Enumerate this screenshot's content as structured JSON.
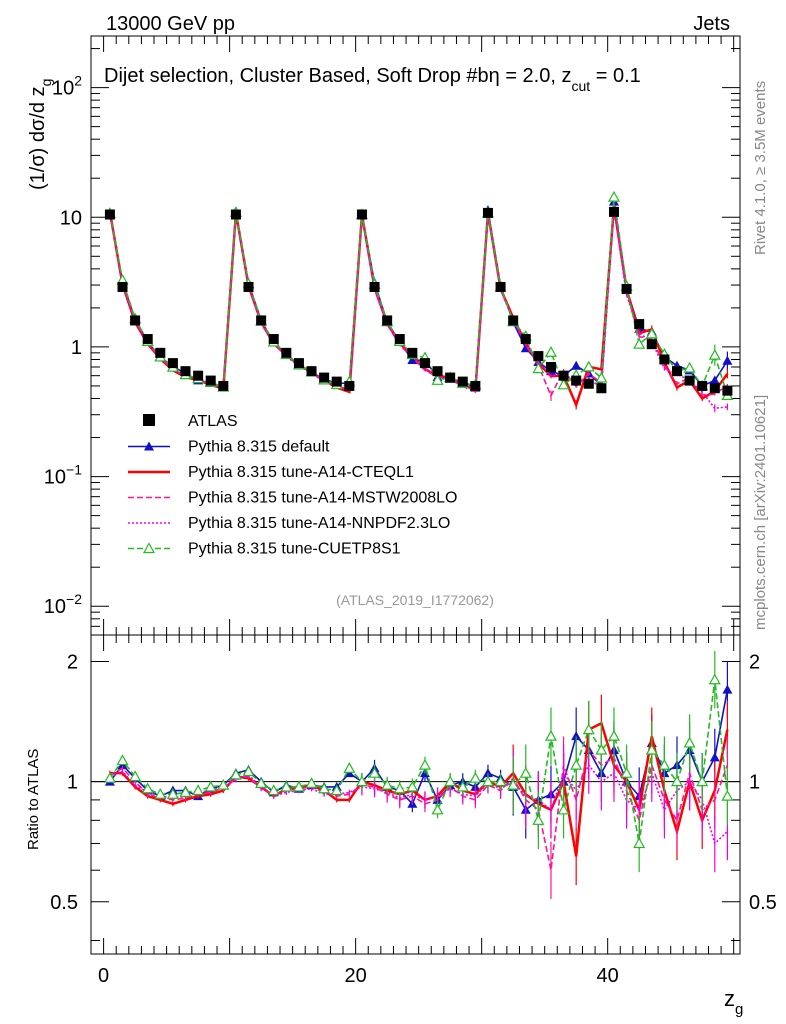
{
  "header": {
    "left": "13000 GeV pp",
    "right": "Jets"
  },
  "side_labels": {
    "top": "Rivet 4.1.0, ≥ 3.5M events",
    "bottom": "mcplots.cern.ch [arXiv:2401.10621]"
  },
  "chart_data": {
    "type": "line",
    "title": "Dijet selection, Cluster Based, Soft Drop #b",
    "title_suffix": "η = 2.0, z",
    "title_sub": "cut",
    "title_end": " = 0.1",
    "analysis_tag": "(ATLAS_2019_I1772062)",
    "xlabel": "z",
    "xlabel_sub": "g",
    "ylabel": "(1/σ) dσ/d z",
    "ylabel_sub": "g",
    "ratio_ylabel": "Ratio to ATLAS",
    "xlim": [
      -1,
      50.5
    ],
    "ylim": [
      0.006,
      250
    ],
    "ratio_ylim": [
      0.37,
      2.33
    ],
    "x_ticks": [
      "0",
      "20",
      "40"
    ],
    "x_tick_values": [
      0,
      20,
      40
    ],
    "y_ticks": [
      {
        "value": 0.01,
        "base": "10",
        "exp": "−2"
      },
      {
        "value": 0.1,
        "base": "10",
        "exp": "−1"
      },
      {
        "value": 1,
        "base": "1",
        "exp": ""
      },
      {
        "value": 10,
        "base": "10",
        "exp": ""
      },
      {
        "value": 100,
        "base": "10",
        "exp": "2"
      }
    ],
    "ratio_ticks": [
      "0.5",
      "1",
      "2"
    ],
    "ratio_tick_values": [
      0.5,
      1,
      2
    ],
    "legend_position": "middle-left",
    "x": [
      0.5,
      1.5,
      2.5,
      3.5,
      4.5,
      5.5,
      6.5,
      7.5,
      8.5,
      9.5,
      10.5,
      11.5,
      12.5,
      13.5,
      14.5,
      15.5,
      16.5,
      17.5,
      18.5,
      19.5,
      20.5,
      21.5,
      22.5,
      23.5,
      24.5,
      25.5,
      26.5,
      27.5,
      28.5,
      29.5,
      30.5,
      31.5,
      32.5,
      33.5,
      34.5,
      35.5,
      36.5,
      37.5,
      38.5,
      39.5,
      40.5,
      41.5,
      42.5,
      43.5,
      44.5,
      45.5,
      46.5,
      47.5,
      48.5,
      49.5
    ],
    "data": {
      "name": "ATLAS",
      "values": [
        10.5,
        2.9,
        1.6,
        1.15,
        0.9,
        0.75,
        0.65,
        0.6,
        0.55,
        0.5,
        10.5,
        2.9,
        1.6,
        1.15,
        0.9,
        0.75,
        0.65,
        0.58,
        0.54,
        0.5,
        10.5,
        2.9,
        1.6,
        1.15,
        0.9,
        0.75,
        0.65,
        0.58,
        0.54,
        0.5,
        10.8,
        2.9,
        1.6,
        1.15,
        0.85,
        0.7,
        0.6,
        0.55,
        0.52,
        0.48,
        11.0,
        2.8,
        1.5,
        1.05,
        0.8,
        0.65,
        0.55,
        0.5,
        0.48,
        0.46
      ]
    },
    "series": [
      {
        "name": "Pythia 8.315 default",
        "color": "#1010cc",
        "style": "solid",
        "marker": "triangle-filled",
        "ratio": [
          1.0,
          1.1,
          1.02,
          0.95,
          0.92,
          0.95,
          0.95,
          0.92,
          0.96,
          0.98,
          1.05,
          1.07,
          1.0,
          0.94,
          0.98,
          0.96,
          0.98,
          0.97,
          0.97,
          1.05,
          1.0,
          1.08,
          0.97,
          0.95,
          0.88,
          1.05,
          0.9,
          0.98,
          1.0,
          0.97,
          1.05,
          1.02,
          0.97,
          0.85,
          0.9,
          0.93,
          1.0,
          1.3,
          1.2,
          1.05,
          1.2,
          1.0,
          0.92,
          1.25,
          1.05,
          1.1,
          1.2,
          1.0,
          1.15,
          1.7
        ]
      },
      {
        "name": "Pythia 8.315 tune-A14-CTEQL1",
        "color": "#ff0000",
        "style": "solid",
        "marker": "none",
        "ratio": [
          1.05,
          1.05,
          0.97,
          0.92,
          0.9,
          0.88,
          0.9,
          0.92,
          0.93,
          0.95,
          1.03,
          1.02,
          0.97,
          0.92,
          0.96,
          0.97,
          0.98,
          0.95,
          0.9,
          0.9,
          1.0,
          0.98,
          0.95,
          0.93,
          0.95,
          0.9,
          0.92,
          1.0,
          0.95,
          0.93,
          1.0,
          0.97,
          1.05,
          0.93,
          0.88,
          0.85,
          1.0,
          0.65,
          1.35,
          1.4,
          1.1,
          1.0,
          0.85,
          1.3,
          0.95,
          0.75,
          1.0,
          0.8,
          0.95,
          1.35
        ]
      },
      {
        "name": "Pythia 8.315 tune-A14-MSTW2008LO",
        "color": "#ff1493",
        "style": "dashed",
        "marker": "none",
        "ratio": [
          1.04,
          1.08,
          1.0,
          0.93,
          0.91,
          0.9,
          0.91,
          0.93,
          0.94,
          0.96,
          1.02,
          1.03,
          0.96,
          0.93,
          0.95,
          0.96,
          0.97,
          0.94,
          0.92,
          0.93,
          0.98,
          0.97,
          0.93,
          0.9,
          0.92,
          0.88,
          0.9,
          0.97,
          0.92,
          0.9,
          0.98,
          0.95,
          1.02,
          0.9,
          0.85,
          0.6,
          1.1,
          0.9,
          1.2,
          1.1,
          1.15,
          0.95,
          0.8,
          1.1,
          0.9,
          0.8,
          1.05,
          0.85,
          0.9,
          1.1
        ]
      },
      {
        "name": "Pythia 8.315 tune-A14-NNPDF2.3LO",
        "color": "#ee00ee",
        "style": "dotted",
        "marker": "none",
        "ratio": [
          1.03,
          1.06,
          0.98,
          0.94,
          0.92,
          0.91,
          0.92,
          0.94,
          0.95,
          0.97,
          1.01,
          1.04,
          0.97,
          0.92,
          0.94,
          0.95,
          0.96,
          0.93,
          0.93,
          0.94,
          0.97,
          0.96,
          0.94,
          0.91,
          0.93,
          0.9,
          0.92,
          0.96,
          0.93,
          0.92,
          0.99,
          0.96,
          1.0,
          0.92,
          0.9,
          0.85,
          1.05,
          0.95,
          1.1,
          1.0,
          1.05,
          0.9,
          0.85,
          1.05,
          0.85,
          0.95,
          1.0,
          0.9,
          0.7,
          0.75
        ]
      },
      {
        "name": "Pythia 8.315 tune-CUETP8S1",
        "color": "#22bb22",
        "style": "dashed",
        "marker": "triangle-open",
        "ratio": [
          1.02,
          1.13,
          1.03,
          0.96,
          0.93,
          0.93,
          0.94,
          0.95,
          0.97,
          0.98,
          1.04,
          1.06,
          0.99,
          0.95,
          0.97,
          0.97,
          0.99,
          0.96,
          0.95,
          1.08,
          1.0,
          1.05,
          0.98,
          0.96,
          0.97,
          1.1,
          0.85,
          1.0,
          0.97,
          1.02,
          1.0,
          1.0,
          0.98,
          1.05,
          0.8,
          1.3,
          0.85,
          1.1,
          1.35,
          1.2,
          1.3,
          1.05,
          0.7,
          1.2,
          1.1,
          1.0,
          1.25,
          1.0,
          1.8,
          0.92
        ]
      }
    ]
  }
}
